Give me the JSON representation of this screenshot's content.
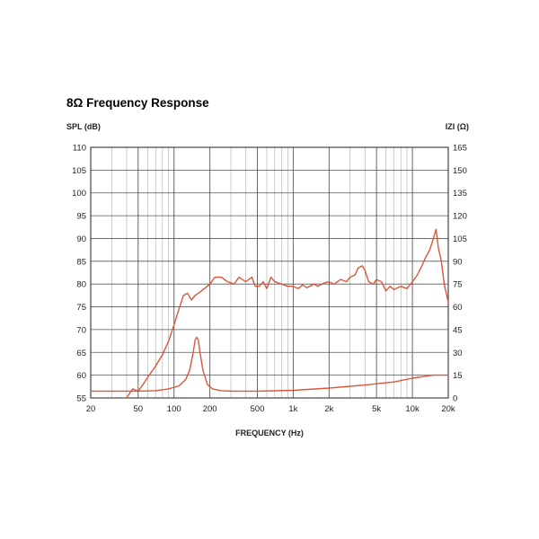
{
  "chart_data": {
    "type": "line",
    "title": "8Ω Frequency Response",
    "ylabel_left": "SPL (dB)",
    "ylabel_right": "IZI (Ω)",
    "xlabel": "FREQUENCY (Hz)",
    "x_scale": "log",
    "xlim": [
      20,
      20000
    ],
    "ylim_left": [
      55,
      110
    ],
    "ylim_right": [
      0,
      165
    ],
    "grid": true,
    "x_ticks": [
      {
        "value": 20,
        "label": "20"
      },
      {
        "value": 50,
        "label": "50"
      },
      {
        "value": 100,
        "label": "100"
      },
      {
        "value": 200,
        "label": "200"
      },
      {
        "value": 500,
        "label": "500"
      },
      {
        "value": 1000,
        "label": "1k"
      },
      {
        "value": 2000,
        "label": "2k"
      },
      {
        "value": 5000,
        "label": "5k"
      },
      {
        "value": 10000,
        "label": "10k"
      },
      {
        "value": 20000,
        "label": "20k"
      }
    ],
    "y_ticks_left": [
      "110",
      "105",
      "100",
      "95",
      "90",
      "85",
      "80",
      "75",
      "70",
      "65",
      "60",
      "55"
    ],
    "y_ticks_right": [
      "165",
      "150",
      "135",
      "120",
      "105",
      "90",
      "75",
      "60",
      "45",
      "30",
      "15",
      "0"
    ],
    "series": [
      {
        "axis": "left",
        "color": "#d9573a",
        "points": [
          [
            40,
            55
          ],
          [
            45,
            57
          ],
          [
            50,
            56.5
          ],
          [
            55,
            58
          ],
          [
            60,
            59.5
          ],
          [
            70,
            62
          ],
          [
            80,
            64.5
          ],
          [
            90,
            67.5
          ],
          [
            100,
            71
          ],
          [
            110,
            74.5
          ],
          [
            120,
            77.5
          ],
          [
            130,
            78
          ],
          [
            140,
            76.5
          ],
          [
            150,
            77.5
          ],
          [
            170,
            78.5
          ],
          [
            200,
            80
          ],
          [
            220,
            81.5
          ],
          [
            250,
            81.5
          ],
          [
            280,
            80.5
          ],
          [
            320,
            80
          ],
          [
            350,
            81.5
          ],
          [
            400,
            80.5
          ],
          [
            450,
            81.5
          ],
          [
            480,
            79.5
          ],
          [
            520,
            79.5
          ],
          [
            560,
            80.5
          ],
          [
            600,
            79
          ],
          [
            650,
            81.5
          ],
          [
            700,
            80.5
          ],
          [
            800,
            80
          ],
          [
            900,
            79.5
          ],
          [
            1000,
            79.5
          ],
          [
            1100,
            79
          ],
          [
            1200,
            79.8
          ],
          [
            1300,
            79.2
          ],
          [
            1500,
            80
          ],
          [
            1600,
            79.5
          ],
          [
            1800,
            80.2
          ],
          [
            2000,
            80.5
          ],
          [
            2200,
            80
          ],
          [
            2500,
            81
          ],
          [
            2800,
            80.5
          ],
          [
            3000,
            81.5
          ],
          [
            3300,
            82
          ],
          [
            3500,
            83.5
          ],
          [
            3800,
            84
          ],
          [
            4000,
            83
          ],
          [
            4300,
            80.5
          ],
          [
            4700,
            80
          ],
          [
            5000,
            81
          ],
          [
            5500,
            80.5
          ],
          [
            6000,
            78.5
          ],
          [
            6500,
            79.5
          ],
          [
            7000,
            78.8
          ],
          [
            8000,
            79.5
          ],
          [
            9000,
            79
          ],
          [
            10000,
            80.5
          ],
          [
            11000,
            82
          ],
          [
            12000,
            84
          ],
          [
            13000,
            86
          ],
          [
            14000,
            87.5
          ],
          [
            15000,
            90
          ],
          [
            15800,
            92
          ],
          [
            16500,
            88
          ],
          [
            17500,
            85
          ],
          [
            18500,
            80
          ],
          [
            20000,
            76
          ]
        ]
      },
      {
        "axis": "right",
        "color": "#d9573a",
        "points": [
          [
            20,
            4.5
          ],
          [
            50,
            4.5
          ],
          [
            70,
            4.8
          ],
          [
            90,
            6
          ],
          [
            110,
            8
          ],
          [
            125,
            12
          ],
          [
            135,
            18
          ],
          [
            145,
            30
          ],
          [
            150,
            38
          ],
          [
            155,
            40
          ],
          [
            160,
            38
          ],
          [
            165,
            30
          ],
          [
            175,
            18
          ],
          [
            190,
            9
          ],
          [
            210,
            6
          ],
          [
            250,
            4.8
          ],
          [
            300,
            4.5
          ],
          [
            500,
            4.5
          ],
          [
            1000,
            5
          ],
          [
            2000,
            6.5
          ],
          [
            4000,
            8.5
          ],
          [
            7000,
            10.5
          ],
          [
            10000,
            13
          ],
          [
            15000,
            15
          ],
          [
            20000,
            15
          ]
        ]
      }
    ]
  }
}
